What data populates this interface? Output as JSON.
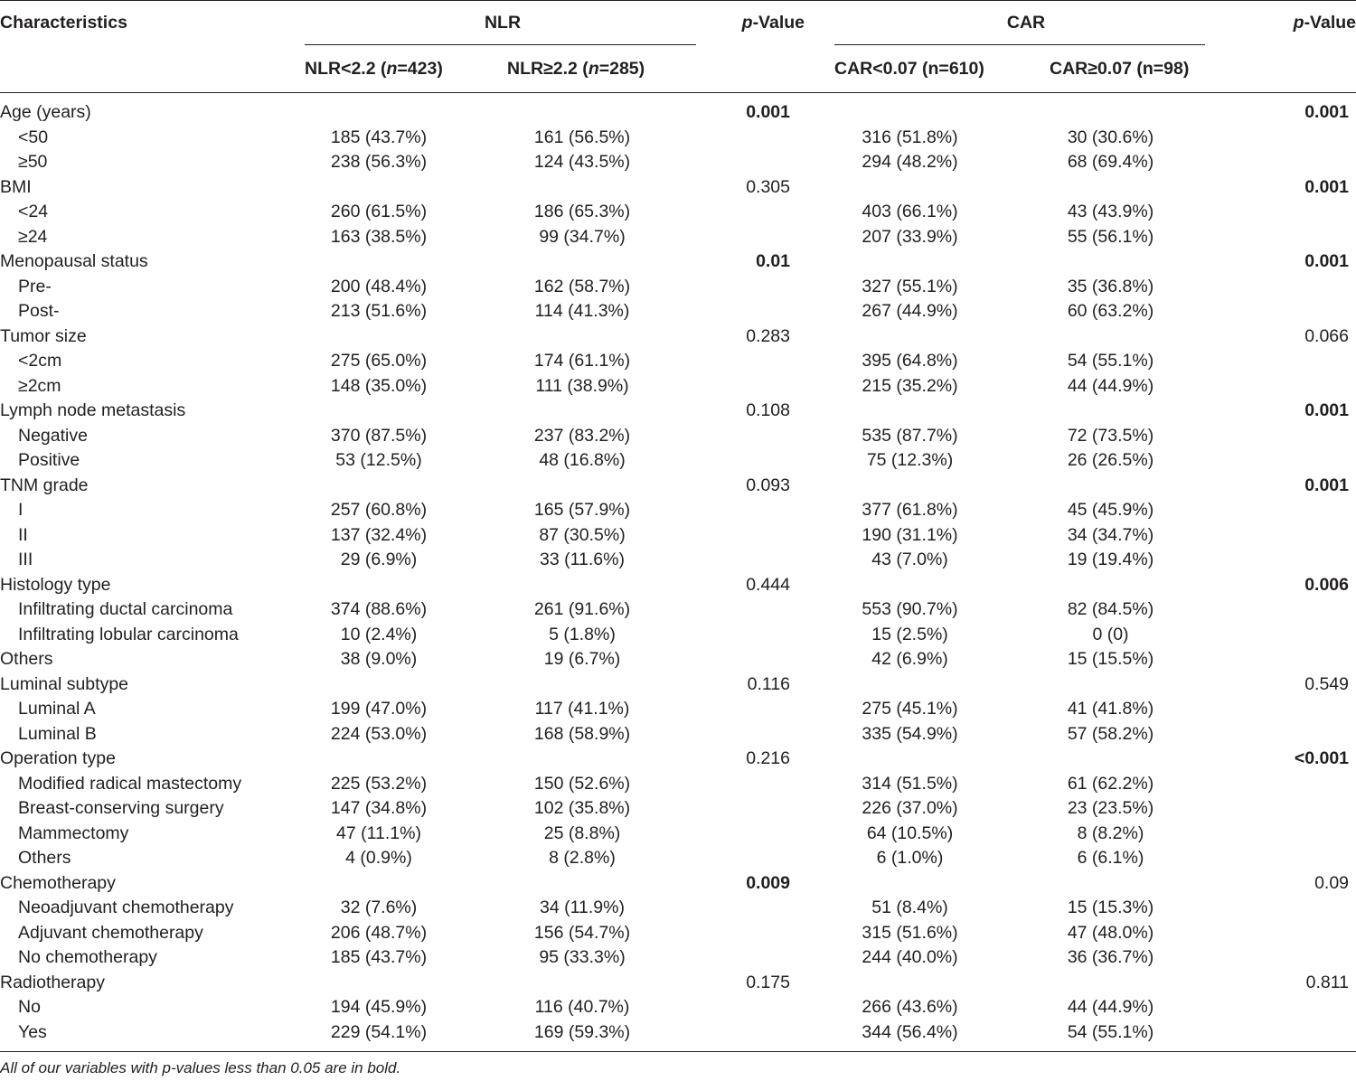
{
  "header": {
    "characteristics": "Characteristics",
    "nlr_group": "NLR",
    "car_group": "CAR",
    "pvalue_italic": "p",
    "pvalue_rest": "-Value",
    "nlr_low_pre": "NLR<2.2 (",
    "nlr_low_n": "n",
    "nlr_low_post": "=423)",
    "nlr_high_pre": "NLR≥2.2 (",
    "nlr_high_n": "n",
    "nlr_high_post": "=285)",
    "car_low": "CAR<0.07 (n=610)",
    "car_high": "CAR≥0.07 (n=98)"
  },
  "rows": [
    {
      "label": "Age (years)",
      "indent": false,
      "nlr_low": "",
      "nlr_high": "",
      "p_nlr": "0.001",
      "p_nlr_bold": true,
      "car_low": "",
      "car_high": "",
      "p_car": "0.001",
      "p_car_bold": true
    },
    {
      "label": "<50",
      "indent": true,
      "nlr_low": "185 (43.7%)",
      "nlr_high": "161 (56.5%)",
      "p_nlr": "",
      "p_nlr_bold": false,
      "car_low": "316 (51.8%)",
      "car_high": "30 (30.6%)",
      "p_car": "",
      "p_car_bold": false
    },
    {
      "label": "≥50",
      "indent": true,
      "nlr_low": "238 (56.3%)",
      "nlr_high": "124 (43.5%)",
      "p_nlr": "",
      "p_nlr_bold": false,
      "car_low": "294 (48.2%)",
      "car_high": "68 (69.4%)",
      "p_car": "",
      "p_car_bold": false
    },
    {
      "label": "BMI",
      "indent": false,
      "nlr_low": "",
      "nlr_high": "",
      "p_nlr": "0.305",
      "p_nlr_bold": false,
      "car_low": "",
      "car_high": "",
      "p_car": "0.001",
      "p_car_bold": true
    },
    {
      "label": "<24",
      "indent": true,
      "nlr_low": "260 (61.5%)",
      "nlr_high": "186 (65.3%)",
      "p_nlr": "",
      "p_nlr_bold": false,
      "car_low": "403 (66.1%)",
      "car_high": "43 (43.9%)",
      "p_car": "",
      "p_car_bold": false
    },
    {
      "label": "≥24",
      "indent": true,
      "nlr_low": "163 (38.5%)",
      "nlr_high": "99 (34.7%)",
      "p_nlr": "",
      "p_nlr_bold": false,
      "car_low": "207 (33.9%)",
      "car_high": "55 (56.1%)",
      "p_car": "",
      "p_car_bold": false
    },
    {
      "label": "Menopausal status",
      "indent": false,
      "nlr_low": "",
      "nlr_high": "",
      "p_nlr": "0.01",
      "p_nlr_bold": true,
      "car_low": "",
      "car_high": "",
      "p_car": "0.001",
      "p_car_bold": true
    },
    {
      "label": "Pre-",
      "indent": true,
      "nlr_low": "200 (48.4%)",
      "nlr_high": "162 (58.7%)",
      "p_nlr": "",
      "p_nlr_bold": false,
      "car_low": "327 (55.1%)",
      "car_high": "35 (36.8%)",
      "p_car": "",
      "p_car_bold": false
    },
    {
      "label": "Post-",
      "indent": true,
      "nlr_low": "213 (51.6%)",
      "nlr_high": "114 (41.3%)",
      "p_nlr": "",
      "p_nlr_bold": false,
      "car_low": "267 (44.9%)",
      "car_high": "60 (63.2%)",
      "p_car": "",
      "p_car_bold": false
    },
    {
      "label": "Tumor size",
      "indent": false,
      "nlr_low": "",
      "nlr_high": "",
      "p_nlr": "0.283",
      "p_nlr_bold": false,
      "car_low": "",
      "car_high": "",
      "p_car": "0.066",
      "p_car_bold": false
    },
    {
      "label": "<2cm",
      "indent": true,
      "nlr_low": "275 (65.0%)",
      "nlr_high": "174 (61.1%)",
      "p_nlr": "",
      "p_nlr_bold": false,
      "car_low": "395 (64.8%)",
      "car_high": "54 (55.1%)",
      "p_car": "",
      "p_car_bold": false
    },
    {
      "label": "≥2cm",
      "indent": true,
      "nlr_low": "148 (35.0%)",
      "nlr_high": "111 (38.9%)",
      "p_nlr": "",
      "p_nlr_bold": false,
      "car_low": "215 (35.2%)",
      "car_high": "44 (44.9%)",
      "p_car": "",
      "p_car_bold": false
    },
    {
      "label": "Lymph node metastasis",
      "indent": false,
      "nlr_low": "",
      "nlr_high": "",
      "p_nlr": "0.108",
      "p_nlr_bold": false,
      "car_low": "",
      "car_high": "",
      "p_car": "0.001",
      "p_car_bold": true
    },
    {
      "label": "Negative",
      "indent": true,
      "nlr_low": "370 (87.5%)",
      "nlr_high": "237 (83.2%)",
      "p_nlr": "",
      "p_nlr_bold": false,
      "car_low": "535 (87.7%)",
      "car_high": "72 (73.5%)",
      "p_car": "",
      "p_car_bold": false
    },
    {
      "label": "Positive",
      "indent": true,
      "nlr_low": "53 (12.5%)",
      "nlr_high": "48 (16.8%)",
      "p_nlr": "",
      "p_nlr_bold": false,
      "car_low": "75 (12.3%)",
      "car_high": "26 (26.5%)",
      "p_car": "",
      "p_car_bold": false
    },
    {
      "label": "TNM grade",
      "indent": false,
      "nlr_low": "",
      "nlr_high": "",
      "p_nlr": "0.093",
      "p_nlr_bold": false,
      "car_low": "",
      "car_high": "",
      "p_car": "0.001",
      "p_car_bold": true
    },
    {
      "label": "I",
      "indent": true,
      "nlr_low": "257 (60.8%)",
      "nlr_high": "165 (57.9%)",
      "p_nlr": "",
      "p_nlr_bold": false,
      "car_low": "377 (61.8%)",
      "car_high": "45 (45.9%)",
      "p_car": "",
      "p_car_bold": false
    },
    {
      "label": "II",
      "indent": true,
      "nlr_low": "137 (32.4%)",
      "nlr_high": "87 (30.5%)",
      "p_nlr": "",
      "p_nlr_bold": false,
      "car_low": "190 (31.1%)",
      "car_high": "34 (34.7%)",
      "p_car": "",
      "p_car_bold": false
    },
    {
      "label": "III",
      "indent": true,
      "nlr_low": "29 (6.9%)",
      "nlr_high": "33 (11.6%)",
      "p_nlr": "",
      "p_nlr_bold": false,
      "car_low": "43 (7.0%)",
      "car_high": "19 (19.4%)",
      "p_car": "",
      "p_car_bold": false
    },
    {
      "label": "Histology type",
      "indent": false,
      "nlr_low": "",
      "nlr_high": "",
      "p_nlr": "0.444",
      "p_nlr_bold": false,
      "car_low": "",
      "car_high": "",
      "p_car": "0.006",
      "p_car_bold": true
    },
    {
      "label": "Infiltrating ductal carcinoma",
      "indent": true,
      "nlr_low": "374 (88.6%)",
      "nlr_high": "261 (91.6%)",
      "p_nlr": "",
      "p_nlr_bold": false,
      "car_low": "553 (90.7%)",
      "car_high": "82 (84.5%)",
      "p_car": "",
      "p_car_bold": false
    },
    {
      "label": "Infiltrating lobular carcinoma",
      "indent": true,
      "nlr_low": "10 (2.4%)",
      "nlr_high": "5 (1.8%)",
      "p_nlr": "",
      "p_nlr_bold": false,
      "car_low": "15 (2.5%)",
      "car_high": "0 (0)",
      "p_car": "",
      "p_car_bold": false
    },
    {
      "label": "Others",
      "indent": false,
      "nlr_low": "38 (9.0%)",
      "nlr_high": "19 (6.7%)",
      "p_nlr": "",
      "p_nlr_bold": false,
      "car_low": "42 (6.9%)",
      "car_high": "15 (15.5%)",
      "p_car": "",
      "p_car_bold": false
    },
    {
      "label": "Luminal subtype",
      "indent": false,
      "nlr_low": "",
      "nlr_high": "",
      "p_nlr": "0.116",
      "p_nlr_bold": false,
      "car_low": "",
      "car_high": "",
      "p_car": "0.549",
      "p_car_bold": false
    },
    {
      "label": "Luminal A",
      "indent": true,
      "nlr_low": "199 (47.0%)",
      "nlr_high": "117 (41.1%)",
      "p_nlr": "",
      "p_nlr_bold": false,
      "car_low": "275 (45.1%)",
      "car_high": "41 (41.8%)",
      "p_car": "",
      "p_car_bold": false
    },
    {
      "label": "Luminal B",
      "indent": true,
      "nlr_low": "224 (53.0%)",
      "nlr_high": "168 (58.9%)",
      "p_nlr": "",
      "p_nlr_bold": false,
      "car_low": "335 (54.9%)",
      "car_high": "57 (58.2%)",
      "p_car": "",
      "p_car_bold": false
    },
    {
      "label": "Operation type",
      "indent": false,
      "nlr_low": "",
      "nlr_high": "",
      "p_nlr": "0.216",
      "p_nlr_bold": false,
      "car_low": "",
      "car_high": "",
      "p_car": "<0.001",
      "p_car_bold": true
    },
    {
      "label": "Modified radical mastectomy",
      "indent": true,
      "nlr_low": "225 (53.2%)",
      "nlr_high": "150 (52.6%)",
      "p_nlr": "",
      "p_nlr_bold": false,
      "car_low": "314 (51.5%)",
      "car_high": "61 (62.2%)",
      "p_car": "",
      "p_car_bold": false
    },
    {
      "label": "Breast-conserving surgery",
      "indent": true,
      "nlr_low": "147 (34.8%)",
      "nlr_high": "102 (35.8%)",
      "p_nlr": "",
      "p_nlr_bold": false,
      "car_low": "226 (37.0%)",
      "car_high": "23 (23.5%)",
      "p_car": "",
      "p_car_bold": false
    },
    {
      "label": "Mammectomy",
      "indent": true,
      "nlr_low": "47 (11.1%)",
      "nlr_high": "25 (8.8%)",
      "p_nlr": "",
      "p_nlr_bold": false,
      "car_low": "64 (10.5%)",
      "car_high": "8 (8.2%)",
      "p_car": "",
      "p_car_bold": false
    },
    {
      "label": "Others",
      "indent": true,
      "nlr_low": "4 (0.9%)",
      "nlr_high": "8 (2.8%)",
      "p_nlr": "",
      "p_nlr_bold": false,
      "car_low": "6 (1.0%)",
      "car_high": "6 (6.1%)",
      "p_car": "",
      "p_car_bold": false
    },
    {
      "label": "Chemotherapy",
      "indent": false,
      "nlr_low": "",
      "nlr_high": "",
      "p_nlr": "0.009",
      "p_nlr_bold": true,
      "car_low": "",
      "car_high": "",
      "p_car": "0.09",
      "p_car_bold": false
    },
    {
      "label": "Neoadjuvant chemotherapy",
      "indent": true,
      "nlr_low": "32 (7.6%)",
      "nlr_high": "34 (11.9%)",
      "p_nlr": "",
      "p_nlr_bold": false,
      "car_low": "51 (8.4%)",
      "car_high": "15 (15.3%)",
      "p_car": "",
      "p_car_bold": false
    },
    {
      "label": "Adjuvant chemotherapy",
      "indent": true,
      "nlr_low": "206 (48.7%)",
      "nlr_high": "156 (54.7%)",
      "p_nlr": "",
      "p_nlr_bold": false,
      "car_low": "315 (51.6%)",
      "car_high": "47 (48.0%)",
      "p_car": "",
      "p_car_bold": false
    },
    {
      "label": "No chemotherapy",
      "indent": true,
      "nlr_low": "185 (43.7%)",
      "nlr_high": "95 (33.3%)",
      "p_nlr": "",
      "p_nlr_bold": false,
      "car_low": "244 (40.0%)",
      "car_high": "36 (36.7%)",
      "p_car": "",
      "p_car_bold": false
    },
    {
      "label": "Radiotherapy",
      "indent": false,
      "nlr_low": "",
      "nlr_high": "",
      "p_nlr": "0.175",
      "p_nlr_bold": false,
      "car_low": "",
      "car_high": "",
      "p_car": "0.811",
      "p_car_bold": false
    },
    {
      "label": "No",
      "indent": true,
      "nlr_low": "194 (45.9%)",
      "nlr_high": "116 (40.7%)",
      "p_nlr": "",
      "p_nlr_bold": false,
      "car_low": "266 (43.6%)",
      "car_high": "44 (44.9%)",
      "p_car": "",
      "p_car_bold": false
    },
    {
      "label": "Yes",
      "indent": true,
      "nlr_low": "229 (54.1%)",
      "nlr_high": "169 (59.3%)",
      "p_nlr": "",
      "p_nlr_bold": false,
      "car_low": "344 (56.4%)",
      "car_high": "54 (55.1%)",
      "p_car": "",
      "p_car_bold": false
    }
  ],
  "footnote": "All of our variables with p-values less than 0.05 are in bold."
}
